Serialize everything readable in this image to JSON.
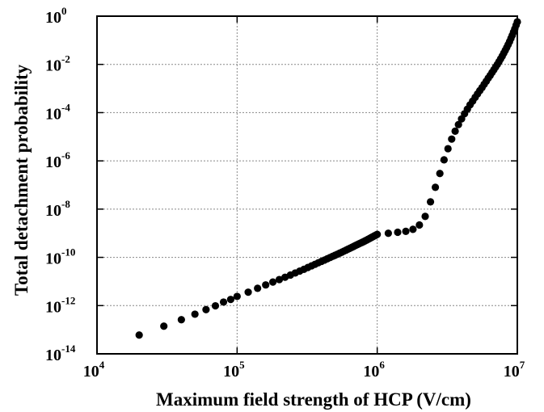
{
  "chart_data": {
    "type": "scatter",
    "title": "",
    "xlabel": "Maximum field strength of HCP (V/cm)",
    "ylabel": "Total detachment probability",
    "xscale": "log",
    "yscale": "log",
    "xlim": [
      10000,
      10000000
    ],
    "ylim": [
      1e-14,
      1
    ],
    "grid": true,
    "legend": "none",
    "marker_color": "#000000",
    "x_ticks": [
      {
        "base": "10",
        "exp": "4"
      },
      {
        "base": "10",
        "exp": "5"
      },
      {
        "base": "10",
        "exp": "6"
      },
      {
        "base": "10",
        "exp": "7"
      }
    ],
    "y_ticks": [
      {
        "base": "10",
        "exp": "-14"
      },
      {
        "base": "10",
        "exp": "-12"
      },
      {
        "base": "10",
        "exp": "-10"
      },
      {
        "base": "10",
        "exp": "-8"
      },
      {
        "base": "10",
        "exp": "-6"
      },
      {
        "base": "10",
        "exp": "-4"
      },
      {
        "base": "10",
        "exp": "-2"
      },
      {
        "base": "10",
        "exp": "0"
      }
    ],
    "series": [
      {
        "points": [
          [
            20000,
            6e-14
          ],
          [
            30000,
            1.4e-13
          ],
          [
            40000,
            2.6e-13
          ],
          [
            50000,
            4.4e-13
          ],
          [
            60000,
            6.8e-13
          ],
          [
            70000,
            9.8e-13
          ],
          [
            80000,
            1.4e-12
          ],
          [
            90000,
            1.8e-12
          ],
          [
            100000,
            2.4e-12
          ],
          [
            120000,
            3.6e-12
          ],
          [
            140000,
            5.2e-12
          ],
          [
            160000,
            7.2e-12
          ],
          [
            180000,
            9.5e-12
          ],
          [
            200000,
            1.2e-11
          ],
          [
            220000,
            1.5e-11
          ],
          [
            240000,
            1.85e-11
          ],
          [
            260000,
            2.25e-11
          ],
          [
            280000,
            2.7e-11
          ],
          [
            300000,
            3.2e-11
          ],
          [
            320000,
            3.8e-11
          ],
          [
            340000,
            4.45e-11
          ],
          [
            360000,
            5.15e-11
          ],
          [
            380000,
            5.95e-11
          ],
          [
            400000,
            6.8e-11
          ],
          [
            420000,
            7.7e-11
          ],
          [
            440000,
            8.7e-11
          ],
          [
            460000,
            9.8e-11
          ],
          [
            480000,
            1.1e-10
          ],
          [
            500000,
            1.22e-10
          ],
          [
            520000,
            1.35e-10
          ],
          [
            540000,
            1.5e-10
          ],
          [
            560000,
            1.65e-10
          ],
          [
            580000,
            1.82e-10
          ],
          [
            600000,
            2e-10
          ],
          [
            620000,
            2.2e-10
          ],
          [
            640000,
            2.4e-10
          ],
          [
            660000,
            2.62e-10
          ],
          [
            680000,
            2.85e-10
          ],
          [
            700000,
            3.1e-10
          ],
          [
            720000,
            3.35e-10
          ],
          [
            740000,
            3.62e-10
          ],
          [
            760000,
            3.9e-10
          ],
          [
            780000,
            4.2e-10
          ],
          [
            800000,
            4.5e-10
          ],
          [
            820000,
            4.85e-10
          ],
          [
            840000,
            5.2e-10
          ],
          [
            860000,
            5.6e-10
          ],
          [
            880000,
            6e-10
          ],
          [
            900000,
            6.45e-10
          ],
          [
            920000,
            6.9e-10
          ],
          [
            940000,
            7.4e-10
          ],
          [
            960000,
            7.9e-10
          ],
          [
            980000,
            8.4e-10
          ],
          [
            1000000,
            9e-10
          ],
          [
            1200000,
            1e-09
          ],
          [
            1400000,
            1.1e-09
          ],
          [
            1600000,
            1.2e-09
          ],
          [
            1800000,
            1.45e-09
          ],
          [
            2000000,
            2.2e-09
          ],
          [
            2200000,
            5e-09
          ],
          [
            2400000,
            2e-08
          ],
          [
            2600000,
            8e-08
          ],
          [
            2800000,
            3e-07
          ],
          [
            3000000,
            1.1e-06
          ],
          [
            3200000,
            3.2e-06
          ],
          [
            3400000,
            8e-06
          ],
          [
            3600000,
            1.7e-05
          ],
          [
            3800000,
            3.2e-05
          ],
          [
            4000000,
            5.5e-05
          ],
          [
            4200000,
            9e-05
          ],
          [
            4400000,
            0.00014
          ],
          [
            4600000,
            0.00021
          ],
          [
            4800000,
            0.0003
          ],
          [
            5000000,
            0.00043
          ],
          [
            5200000,
            0.0006
          ],
          [
            5400000,
            0.00082
          ],
          [
            5600000,
            0.0011
          ],
          [
            5800000,
            0.0015
          ],
          [
            6000000,
            0.002
          ],
          [
            6200000,
            0.0027
          ],
          [
            6400000,
            0.0035
          ],
          [
            6600000,
            0.0046
          ],
          [
            6800000,
            0.006
          ],
          [
            7000000,
            0.0078
          ],
          [
            7200000,
            0.01
          ],
          [
            7400000,
            0.013
          ],
          [
            7600000,
            0.017
          ],
          [
            7800000,
            0.022
          ],
          [
            8000000,
            0.029
          ],
          [
            8200000,
            0.038
          ],
          [
            8400000,
            0.05
          ],
          [
            8600000,
            0.066
          ],
          [
            8800000,
            0.088
          ],
          [
            9000000,
            0.12
          ],
          [
            9200000,
            0.16
          ],
          [
            9400000,
            0.22
          ],
          [
            9600000,
            0.3
          ],
          [
            9800000,
            0.42
          ],
          [
            10000000,
            0.58
          ]
        ]
      }
    ]
  }
}
